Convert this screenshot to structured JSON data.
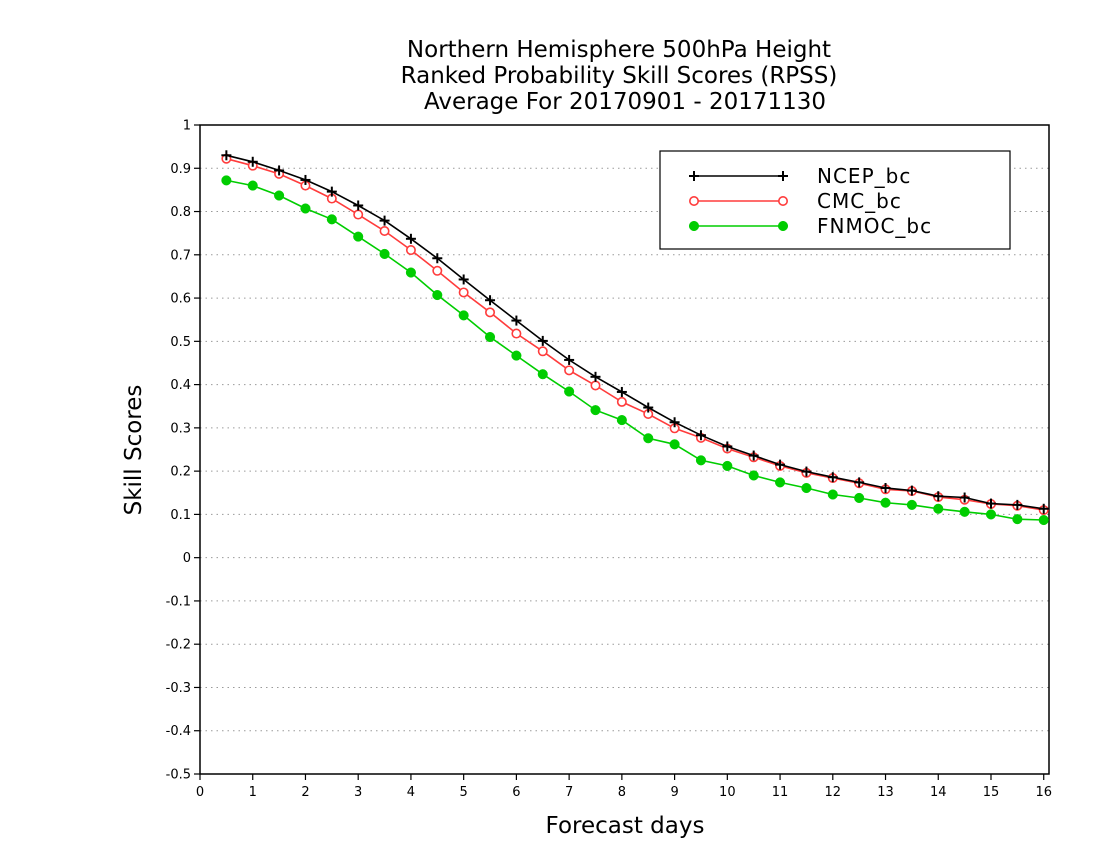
{
  "chart_data": {
    "type": "line",
    "title": [
      "Northern Hemisphere 500hPa Height",
      "Ranked Probability Skill Scores (RPSS)",
      "Average For 20170901 - 20171130"
    ],
    "xlabel": "Forecast days",
    "ylabel": "Skill Scores",
    "xlim": [
      0,
      16.1
    ],
    "ylim": [
      -0.5,
      1
    ],
    "xticks": [
      0,
      1,
      2,
      3,
      4,
      5,
      6,
      7,
      8,
      9,
      10,
      11,
      12,
      13,
      14,
      15,
      16
    ],
    "xtick_labels": [
      "0",
      "1",
      "2",
      "3",
      "4",
      "5",
      "6",
      "7",
      "8",
      "9",
      "10",
      "11",
      "12",
      "13",
      "14",
      "15",
      "16"
    ],
    "yticks": [
      -0.5,
      -0.4,
      -0.3,
      -0.2,
      -0.1,
      0,
      0.1,
      0.2,
      0.3,
      0.4,
      0.5,
      0.6,
      0.7,
      0.8,
      0.9,
      1
    ],
    "ytick_labels": [
      "-0.5",
      "-0.4",
      "-0.3",
      "-0.2",
      "-0.1",
      "0",
      "0.1",
      "0.2",
      "0.3",
      "0.4",
      "0.5",
      "0.6",
      "0.7",
      "0.8",
      "0.9",
      "1"
    ],
    "grid": "horizontal-dotted",
    "legend_position": "top-right",
    "x": [
      0.5,
      1,
      1.5,
      2,
      2.5,
      3,
      3.5,
      4,
      4.5,
      5,
      5.5,
      6,
      6.5,
      7,
      7.5,
      8,
      8.5,
      9,
      9.5,
      10,
      10.5,
      11,
      11.5,
      12,
      12.5,
      13,
      13.5,
      14,
      14.5,
      15,
      15.5,
      16
    ],
    "series": [
      {
        "name": "NCEP_bc",
        "color": "#000000",
        "marker": "plus",
        "values": [
          0.93,
          0.915,
          0.895,
          0.873,
          0.846,
          0.814,
          0.779,
          0.737,
          0.692,
          0.643,
          0.595,
          0.548,
          0.501,
          0.457,
          0.418,
          0.383,
          0.347,
          0.313,
          0.283,
          0.257,
          0.236,
          0.215,
          0.199,
          0.186,
          0.174,
          0.161,
          0.155,
          0.142,
          0.139,
          0.125,
          0.122,
          0.113
        ]
      },
      {
        "name": "CMC_bc",
        "color": "#ff3c3c",
        "marker": "open-circle",
        "values": [
          0.922,
          0.906,
          0.887,
          0.86,
          0.83,
          0.793,
          0.755,
          0.711,
          0.663,
          0.613,
          0.567,
          0.518,
          0.477,
          0.433,
          0.398,
          0.36,
          0.332,
          0.299,
          0.277,
          0.252,
          0.232,
          0.212,
          0.196,
          0.184,
          0.172,
          0.158,
          0.154,
          0.14,
          0.134,
          0.124,
          0.12,
          0.11
        ]
      },
      {
        "name": "FNMOC_bc",
        "color": "#00cd00",
        "marker": "filled-circle",
        "values": [
          0.872,
          0.86,
          0.837,
          0.807,
          0.782,
          0.742,
          0.702,
          0.659,
          0.607,
          0.56,
          0.51,
          0.467,
          0.424,
          0.384,
          0.341,
          0.318,
          0.276,
          0.262,
          0.225,
          0.212,
          0.19,
          0.174,
          0.161,
          0.146,
          0.138,
          0.127,
          0.122,
          0.113,
          0.106,
          0.1,
          0.089,
          0.087
        ]
      }
    ]
  }
}
